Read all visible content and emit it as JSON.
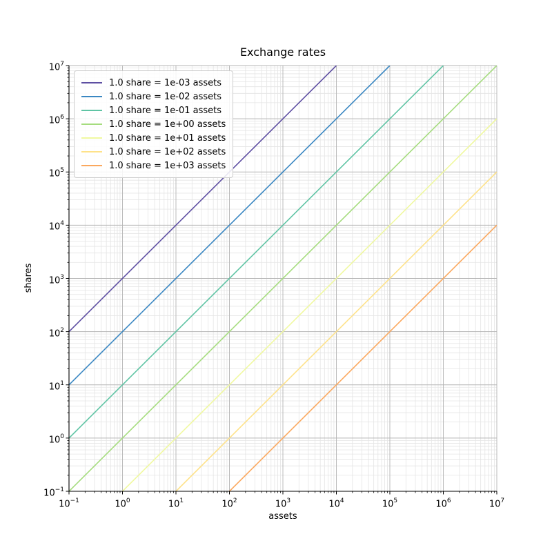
{
  "chart_data": {
    "type": "line",
    "title": "Exchange rates",
    "xlabel": "assets",
    "ylabel": "shares",
    "xscale": "log",
    "yscale": "log",
    "xlim": [
      0.1,
      10000000
    ],
    "ylim": [
      0.1,
      10000000
    ],
    "x_tick_exponents": [
      -1,
      0,
      1,
      2,
      3,
      4,
      5,
      6,
      7
    ],
    "y_tick_exponents": [
      -1,
      0,
      1,
      2,
      3,
      4,
      5,
      6,
      7
    ],
    "grid": "major+minor",
    "legend_position": "upper left",
    "series": [
      {
        "label": "1.0 share = 1e-03 assets",
        "assets_per_share": 0.001,
        "rate_exponent": -3,
        "color": "#5e4fa2",
        "endpoints_assets_shares": [
          [
            0.1,
            100
          ],
          [
            10000,
            10000000
          ]
        ]
      },
      {
        "label": "1.0 share = 1e-02 assets",
        "assets_per_share": 0.01,
        "rate_exponent": -2,
        "color": "#3a87c2",
        "endpoints_assets_shares": [
          [
            0.1,
            10
          ],
          [
            100000,
            10000000
          ]
        ]
      },
      {
        "label": "1.0 share = 1e-01 assets",
        "assets_per_share": 0.1,
        "rate_exponent": -1,
        "color": "#5fc4a4",
        "endpoints_assets_shares": [
          [
            0.1,
            1
          ],
          [
            1000000,
            10000000
          ]
        ]
      },
      {
        "label": "1.0 share = 1e+00 assets",
        "assets_per_share": 1.0,
        "rate_exponent": 0,
        "color": "#a5dc7e",
        "endpoints_assets_shares": [
          [
            0.1,
            0.1
          ],
          [
            10000000,
            10000000
          ]
        ]
      },
      {
        "label": "1.0 share = 1e+01 assets",
        "assets_per_share": 10.0,
        "rate_exponent": 1,
        "color": "#f0f9a0",
        "endpoints_assets_shares": [
          [
            1,
            0.1
          ],
          [
            10000000,
            1000000
          ]
        ]
      },
      {
        "label": "1.0 share = 1e+02 assets",
        "assets_per_share": 100.0,
        "rate_exponent": 2,
        "color": "#fee289",
        "endpoints_assets_shares": [
          [
            10,
            0.1
          ],
          [
            10000000,
            100000
          ]
        ]
      },
      {
        "label": "1.0 share = 1e+03 assets",
        "assets_per_share": 1000.0,
        "rate_exponent": 3,
        "color": "#fba85e",
        "endpoints_assets_shares": [
          [
            100,
            0.1
          ],
          [
            10000000,
            10000
          ]
        ]
      }
    ],
    "colors": {
      "major_grid": "#b4b4b4",
      "minor_grid": "#e4e4e4",
      "spine": "#000000",
      "tick": "#000000",
      "text": "#000000",
      "legend_border": "#cccccc"
    }
  }
}
